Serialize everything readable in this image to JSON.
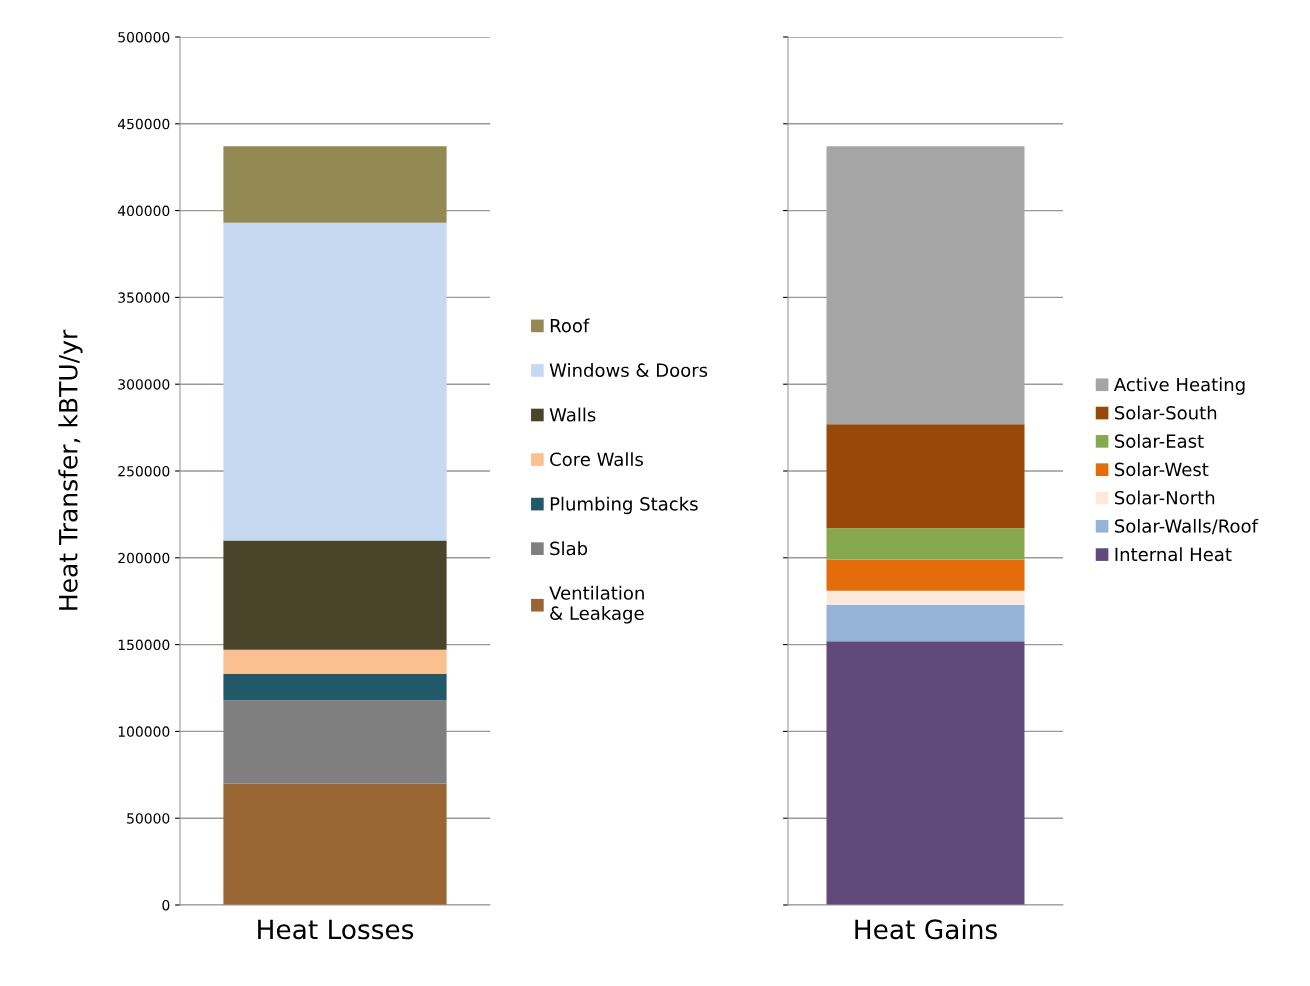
{
  "chart_data": [
    {
      "type": "bar",
      "stacked": true,
      "ylabel": "Heat Transfer, kBTU/yr",
      "categories": [
        "Heat Losses"
      ],
      "ylim": [
        0,
        500000
      ],
      "yticks": [
        0,
        50000,
        100000,
        150000,
        200000,
        250000,
        300000,
        350000,
        400000,
        450000,
        500000
      ],
      "grid": "y",
      "legend": "right",
      "series": [
        {
          "name": "Ventilation\n& Leakage",
          "color": "#996633",
          "values": [
            70000
          ]
        },
        {
          "name": "Slab",
          "color": "#7f7f7f",
          "values": [
            48000
          ]
        },
        {
          "name": "Plumbing Stacks",
          "color": "#215968",
          "values": [
            15000
          ]
        },
        {
          "name": "Core Walls",
          "color": "#fac090",
          "values": [
            14000
          ]
        },
        {
          "name": "Walls",
          "color": "#4a452a",
          "values": [
            63000
          ]
        },
        {
          "name": "Windows & Doors",
          "color": "#c6d9f1",
          "values": [
            183000
          ]
        },
        {
          "name": "Roof",
          "color": "#938953",
          "values": [
            44000
          ]
        }
      ]
    },
    {
      "type": "bar",
      "stacked": true,
      "categories": [
        "Heat Gains"
      ],
      "ylim": [
        0,
        500000
      ],
      "yticks": [
        0,
        50000,
        100000,
        150000,
        200000,
        250000,
        300000,
        350000,
        400000,
        450000,
        500000
      ],
      "grid": "y",
      "legend": "right",
      "tick_labels": "x",
      "series": [
        {
          "name": "Internal Heat",
          "color": "#604a7b",
          "values": [
            152000
          ]
        },
        {
          "name": "Solar-Walls/Roof",
          "color": "#95b3d7",
          "values": [
            21000
          ]
        },
        {
          "name": "Solar-North",
          "color": "#fde9d9",
          "values": [
            8000
          ]
        },
        {
          "name": "Solar-West",
          "color": "#e46c0a",
          "values": [
            18000
          ]
        },
        {
          "name": "Solar-East",
          "color": "#86a94f",
          "values": [
            18000
          ]
        },
        {
          "name": "Solar-South",
          "color": "#984807",
          "values": [
            60000
          ]
        },
        {
          "name": "Active Heating",
          "color": "#a5a5a5",
          "values": [
            160000
          ]
        }
      ]
    }
  ]
}
